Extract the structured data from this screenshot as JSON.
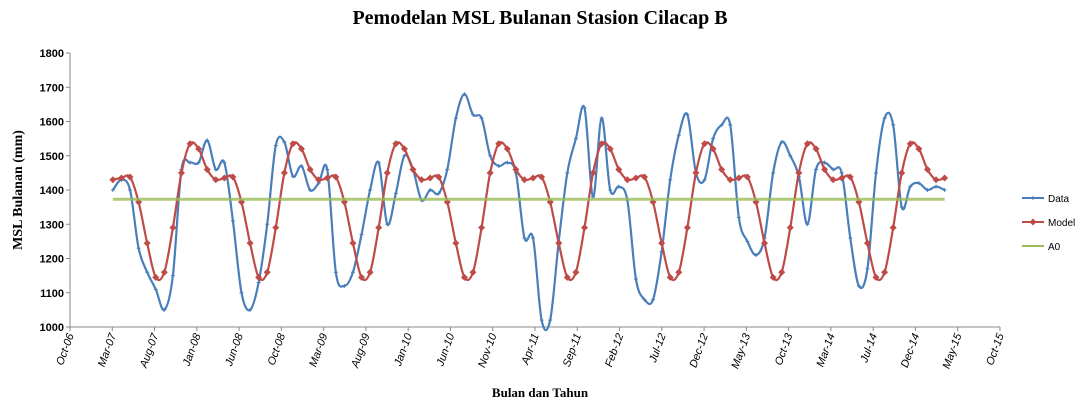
{
  "chart_data": {
    "type": "line",
    "title": "Pemodelan MSL Bulanan Stasion Cilacap B",
    "x_label": "Bulan dan Tahun",
    "y_label": "MSL Bulanan (mm)",
    "x": [
      5,
      6,
      7,
      8,
      9,
      10,
      11,
      12,
      13,
      14,
      15,
      16,
      17,
      18,
      19,
      20,
      21,
      22,
      23,
      24,
      25,
      26,
      27,
      28,
      29,
      30,
      31,
      32,
      33,
      34,
      35,
      36,
      37,
      38,
      39,
      40,
      41,
      42,
      43,
      44,
      45,
      46,
      47,
      48,
      49,
      50,
      51,
      52,
      53,
      54,
      55,
      56,
      57,
      58,
      59,
      60,
      61,
      62,
      63,
      64,
      65,
      66,
      67,
      68,
      69,
      70,
      71,
      72,
      73,
      74,
      75,
      76,
      77,
      78,
      79,
      80,
      81,
      82,
      83,
      84,
      85,
      86,
      87,
      88,
      89,
      90,
      91,
      92,
      93,
      94,
      95,
      96,
      97,
      98,
      99,
      100,
      101,
      102
    ],
    "series": [
      {
        "name": "Data",
        "color": "#4a7ebb",
        "marker": "plus",
        "values": [
          1400,
          1430,
          1400,
          1230,
          1160,
          1110,
          1050,
          1150,
          1460,
          1480,
          1480,
          1545,
          1460,
          1480,
          1310,
          1100,
          1050,
          1130,
          1300,
          1530,
          1540,
          1440,
          1470,
          1400,
          1420,
          1460,
          1160,
          1120,
          1160,
          1270,
          1400,
          1480,
          1300,
          1390,
          1500,
          1460,
          1370,
          1400,
          1390,
          1460,
          1610,
          1680,
          1620,
          1610,
          1500,
          1470,
          1480,
          1450,
          1260,
          1260,
          1020,
          1020,
          1250,
          1450,
          1550,
          1640,
          1380,
          1610,
          1400,
          1410,
          1370,
          1140,
          1080,
          1080,
          1220,
          1430,
          1560,
          1620,
          1450,
          1430,
          1550,
          1590,
          1590,
          1320,
          1250,
          1210,
          1260,
          1450,
          1540,
          1500,
          1440,
          1300,
          1460,
          1480,
          1460,
          1450,
          1260,
          1120,
          1170,
          1450,
          1610,
          1590,
          1350,
          1410,
          1420,
          1400,
          1410,
          1400
        ]
      },
      {
        "name": "Model",
        "color": "#be4b48",
        "marker": "diamond",
        "values": [
          1430,
          1435,
          1438,
          1365,
          1245,
          1145,
          1160,
          1290,
          1450,
          1535,
          1520,
          1460,
          1430,
          1435,
          1438,
          1365,
          1245,
          1145,
          1160,
          1290,
          1450,
          1535,
          1520,
          1460,
          1430,
          1435,
          1438,
          1365,
          1245,
          1145,
          1160,
          1290,
          1450,
          1535,
          1520,
          1460,
          1430,
          1435,
          1438,
          1365,
          1245,
          1145,
          1160,
          1290,
          1450,
          1535,
          1520,
          1460,
          1430,
          1435,
          1438,
          1365,
          1245,
          1145,
          1160,
          1290,
          1450,
          1535,
          1520,
          1460,
          1430,
          1435,
          1438,
          1365,
          1245,
          1145,
          1160,
          1290,
          1450,
          1535,
          1520,
          1460,
          1430,
          1435,
          1438,
          1365,
          1245,
          1145,
          1160,
          1290,
          1450,
          1535,
          1520,
          1460,
          1430,
          1435,
          1438,
          1365,
          1245,
          1145,
          1160,
          1290,
          1450,
          1535,
          1520,
          1460,
          1430,
          1435
        ]
      },
      {
        "name": "A0",
        "color": "#9bbb59",
        "marker": "dash",
        "values": [
          1373,
          1373,
          1373,
          1373,
          1373,
          1373,
          1373,
          1373,
          1373,
          1373,
          1373,
          1373,
          1373,
          1373,
          1373,
          1373,
          1373,
          1373,
          1373,
          1373,
          1373,
          1373,
          1373,
          1373,
          1373,
          1373,
          1373,
          1373,
          1373,
          1373,
          1373,
          1373,
          1373,
          1373,
          1373,
          1373,
          1373,
          1373,
          1373,
          1373,
          1373,
          1373,
          1373,
          1373,
          1373,
          1373,
          1373,
          1373,
          1373,
          1373,
          1373,
          1373,
          1373,
          1373,
          1373,
          1373,
          1373,
          1373,
          1373,
          1373,
          1373,
          1373,
          1373,
          1373,
          1373,
          1373,
          1373,
          1373,
          1373,
          1373,
          1373,
          1373,
          1373,
          1373,
          1373,
          1373,
          1373,
          1373,
          1373,
          1373,
          1373,
          1373,
          1373,
          1373,
          1373,
          1373,
          1373,
          1373,
          1373,
          1373,
          1373,
          1373,
          1373,
          1373,
          1373,
          1373,
          1373,
          1373
        ]
      }
    ],
    "xlim": [
      0,
      108.46
    ],
    "xticks": [
      {
        "value": 0,
        "label": "Oct-06"
      },
      {
        "value": 4.93,
        "label": "Mar-07"
      },
      {
        "value": 9.86,
        "label": "Aug-07"
      },
      {
        "value": 14.79,
        "label": "Jan-08"
      },
      {
        "value": 19.72,
        "label": "Jun-08"
      },
      {
        "value": 24.65,
        "label": "Oct-08"
      },
      {
        "value": 29.58,
        "label": "Mar-09"
      },
      {
        "value": 34.51,
        "label": "Aug-09"
      },
      {
        "value": 39.44,
        "label": "Jan-10"
      },
      {
        "value": 44.37,
        "label": "Jun-10"
      },
      {
        "value": 49.3,
        "label": "Nov-10"
      },
      {
        "value": 54.23,
        "label": "Apr-11"
      },
      {
        "value": 59.16,
        "label": "Sep-11"
      },
      {
        "value": 64.09,
        "label": "Feb-12"
      },
      {
        "value": 69.02,
        "label": "Jul-12"
      },
      {
        "value": 73.95,
        "label": "Dec-12"
      },
      {
        "value": 78.88,
        "label": "May-13"
      },
      {
        "value": 83.81,
        "label": "Oct-13"
      },
      {
        "value": 88.74,
        "label": "Mar-14"
      },
      {
        "value": 93.67,
        "label": "Jul-14"
      },
      {
        "value": 98.6,
        "label": "Dec-14"
      },
      {
        "value": 103.53,
        "label": "May-15"
      },
      {
        "value": 108.46,
        "label": "Oct-15"
      }
    ],
    "ylim": [
      1000,
      1800
    ],
    "yticks": [
      1000,
      1100,
      1200,
      1300,
      1400,
      1500,
      1600,
      1700,
      1800
    ],
    "legend": "right"
  }
}
